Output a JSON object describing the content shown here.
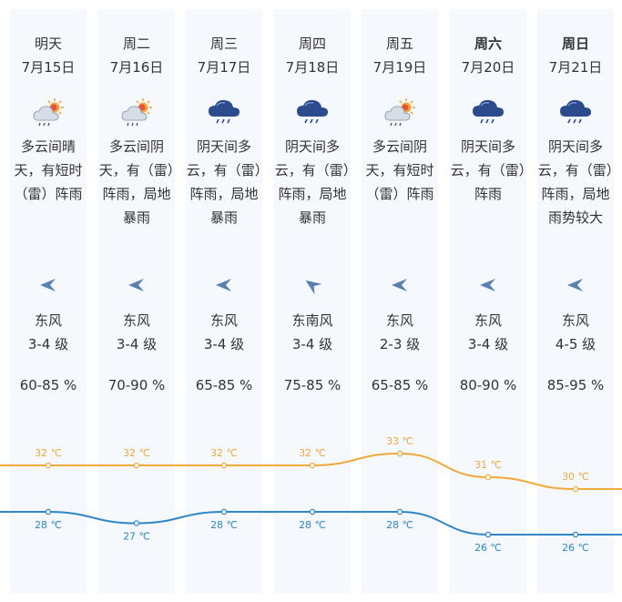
{
  "days": [
    {
      "day": "明天",
      "date": "7月15日",
      "desc": "多云间晴天，有短时（雷）阵雨",
      "icon": "partly-cloudy-thunder-icon",
      "wind": "东风",
      "level": "3-4 级",
      "humidity": "60-85 %",
      "high": "32 ℃",
      "low": "28 ℃",
      "bold": false,
      "arrow": "wind-east-arrow-icon"
    },
    {
      "day": "周二",
      "date": "7月16日",
      "desc": "多云间阴天，有（雷）阵雨，局地暴雨",
      "icon": "partly-cloudy-thunder-icon",
      "wind": "东风",
      "level": "3-4 级",
      "humidity": "70-90 %",
      "high": "32 ℃",
      "low": "27 ℃",
      "bold": false,
      "arrow": "wind-east-arrow-icon"
    },
    {
      "day": "周三",
      "date": "7月17日",
      "desc": "阴天间多云，有（雷）阵雨，局地暴雨",
      "icon": "thunderstorm-cloud-icon",
      "wind": "东风",
      "level": "3-4 级",
      "humidity": "65-85 %",
      "high": "32 ℃",
      "low": "28 ℃",
      "bold": false,
      "arrow": "wind-east-arrow-icon"
    },
    {
      "day": "周四",
      "date": "7月18日",
      "desc": "阴天间多云，有（雷）阵雨，局地暴雨",
      "icon": "thunderstorm-cloud-icon",
      "wind": "东南风",
      "level": "3-4 级",
      "humidity": "75-85 %",
      "high": "32 ℃",
      "low": "28 ℃",
      "bold": false,
      "arrow": "wind-southeast-arrow-icon"
    },
    {
      "day": "周五",
      "date": "7月19日",
      "desc": "多云间阴天，有短时（雷）阵雨",
      "icon": "partly-cloudy-thunder-icon",
      "wind": "东风",
      "level": "2-3 级",
      "humidity": "65-85 %",
      "high": "33 ℃",
      "low": "28 ℃",
      "bold": false,
      "arrow": "wind-east-arrow-icon"
    },
    {
      "day": "周六",
      "date": "7月20日",
      "desc": "阴天间多云，有（雷）阵雨",
      "icon": "thunderstorm-cloud-icon",
      "wind": "东风",
      "level": "3-4 级",
      "humidity": "80-90 %",
      "high": "31 ℃",
      "low": "26 ℃",
      "bold": true,
      "arrow": "wind-east-arrow-icon"
    },
    {
      "day": "周日",
      "date": "7月21日",
      "desc": "阴天间多云，有（雷）阵雨，局地雨势较大",
      "icon": "thunderstorm-cloud-icon",
      "wind": "东风",
      "level": "4-5 级",
      "humidity": "85-95 %",
      "high": "30 ℃",
      "low": "26 ℃",
      "bold": true,
      "arrow": "wind-east-arrow-icon"
    }
  ],
  "colors": {
    "high": "#f0a93b",
    "low": "#2f86c8",
    "panel": "#f5f8fc"
  },
  "chart_data": {
    "type": "line",
    "categories": [
      "7月15日",
      "7月16日",
      "7月17日",
      "7月18日",
      "7月19日",
      "7月20日",
      "7月21日"
    ],
    "series": [
      {
        "values": [
          32,
          32,
          32,
          32,
          33,
          31,
          30
        ]
      },
      {
        "values": [
          28,
          27,
          28,
          28,
          28,
          26,
          26
        ]
      }
    ]
  }
}
